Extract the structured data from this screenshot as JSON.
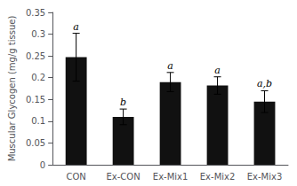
{
  "chart_data": {
    "type": "bar",
    "categories": [
      "CON",
      "Ex-CON",
      "Ex-Mix1",
      "Ex-Mix2",
      "Ex-Mix3"
    ],
    "values": [
      0.247,
      0.11,
      0.19,
      0.182,
      0.145
    ],
    "errors": [
      0.055,
      0.018,
      0.022,
      0.02,
      0.025
    ],
    "annotations": [
      "a",
      "b",
      "a",
      "a",
      "a,b"
    ],
    "color": "#111111",
    "ylabel": "Muscular Glycogen (mg/g tissue)",
    "ylim": [
      0,
      0.35
    ],
    "yticks": [
      0,
      0.05,
      0.1,
      0.15,
      0.2,
      0.25,
      0.3,
      0.35
    ],
    "grid": false
  }
}
